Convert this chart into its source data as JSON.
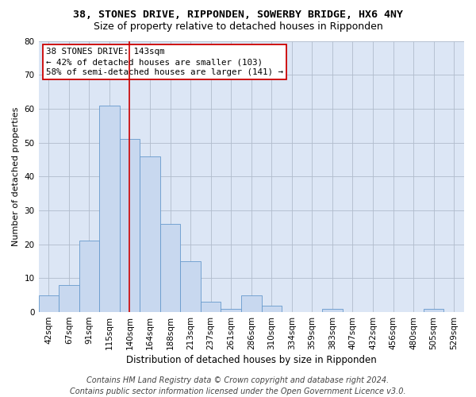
{
  "title1": "38, STONES DRIVE, RIPPONDEN, SOWERBY BRIDGE, HX6 4NY",
  "title2": "Size of property relative to detached houses in Ripponden",
  "xlabel": "Distribution of detached houses by size in Ripponden",
  "ylabel": "Number of detached properties",
  "categories": [
    "42sqm",
    "67sqm",
    "91sqm",
    "115sqm",
    "140sqm",
    "164sqm",
    "188sqm",
    "213sqm",
    "237sqm",
    "261sqm",
    "286sqm",
    "310sqm",
    "334sqm",
    "359sqm",
    "383sqm",
    "407sqm",
    "432sqm",
    "456sqm",
    "480sqm",
    "505sqm",
    "529sqm"
  ],
  "values": [
    5,
    8,
    21,
    61,
    51,
    46,
    26,
    15,
    3,
    1,
    5,
    2,
    0,
    0,
    1,
    0,
    0,
    0,
    0,
    1,
    0
  ],
  "bar_color": "#c8d8ef",
  "bar_edge_color": "#6699cc",
  "vline_x_index": 4,
  "vline_color": "#cc0000",
  "ylim": [
    0,
    80
  ],
  "yticks": [
    0,
    10,
    20,
    30,
    40,
    50,
    60,
    70,
    80
  ],
  "annotation_line1": "38 STONES DRIVE: 143sqm",
  "annotation_line2": "← 42% of detached houses are smaller (103)",
  "annotation_line3": "58% of semi-detached houses are larger (141) →",
  "annotation_box_facecolor": "#ffffff",
  "annotation_box_edgecolor": "#cc0000",
  "footer1": "Contains HM Land Registry data © Crown copyright and database right 2024.",
  "footer2": "Contains public sector information licensed under the Open Government Licence v3.0.",
  "fig_facecolor": "#ffffff",
  "axes_facecolor": "#dce6f5",
  "grid_color": "#b0bccc",
  "title1_fontsize": 9.5,
  "title2_fontsize": 9,
  "xlabel_fontsize": 8.5,
  "ylabel_fontsize": 8,
  "tick_fontsize": 7.5,
  "annotation_fontsize": 7.8,
  "footer_fontsize": 7
}
